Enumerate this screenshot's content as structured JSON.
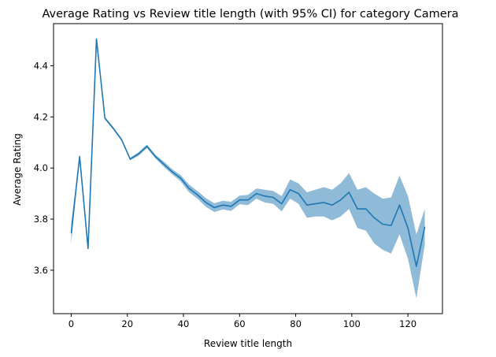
{
  "chart_data": {
    "type": "line",
    "title": "Average Rating vs Review title length (with 95% CI) for category Camera",
    "xlabel": "Review title length",
    "ylabel": "Average Rating",
    "xlim": [
      -6.3,
      132.3
    ],
    "ylim": [
      3.43,
      4.565
    ],
    "xticks": [
      0,
      20,
      40,
      60,
      80,
      100,
      120
    ],
    "yticks": [
      3.6,
      3.8,
      4.0,
      4.2,
      4.4
    ],
    "ytick_labels": [
      "3.6",
      "3.8",
      "4.0",
      "4.2",
      "4.4"
    ],
    "grid": false,
    "series": [
      {
        "color": "#1f77b4",
        "band_color": "#1f77b4",
        "band_opacity": 0.5,
        "x": [
          0,
          3,
          6,
          9,
          12,
          15,
          18,
          21,
          24,
          27,
          30,
          33,
          36,
          39,
          42,
          45,
          48,
          51,
          54,
          57,
          60,
          63,
          66,
          69,
          72,
          75,
          78,
          81,
          84,
          87,
          90,
          93,
          96,
          99,
          102,
          105,
          108,
          111,
          114,
          117,
          120,
          123,
          126
        ],
        "y": [
          3.745,
          4.045,
          3.685,
          4.505,
          4.195,
          4.155,
          4.11,
          4.035,
          4.055,
          4.085,
          4.045,
          4.015,
          3.985,
          3.96,
          3.92,
          3.895,
          3.865,
          3.845,
          3.855,
          3.85,
          3.875,
          3.875,
          3.9,
          3.89,
          3.885,
          3.86,
          3.915,
          3.9,
          3.855,
          3.86,
          3.865,
          3.855,
          3.875,
          3.905,
          3.84,
          3.84,
          3.805,
          3.78,
          3.775,
          3.855,
          3.765,
          3.615,
          3.77
        ],
        "ci_lower": [
          3.705,
          4.04,
          3.682,
          4.5,
          4.19,
          4.15,
          4.105,
          4.03,
          4.048,
          4.078,
          4.038,
          4.005,
          3.975,
          3.948,
          3.905,
          3.88,
          3.848,
          3.828,
          3.838,
          3.832,
          3.858,
          3.855,
          3.88,
          3.865,
          3.86,
          3.83,
          3.88,
          3.86,
          3.805,
          3.81,
          3.81,
          3.795,
          3.81,
          3.84,
          3.765,
          3.755,
          3.705,
          3.68,
          3.665,
          3.74,
          3.645,
          3.49,
          3.7
        ],
        "ci_upper": [
          3.785,
          4.05,
          3.688,
          4.51,
          4.2,
          4.16,
          4.115,
          4.04,
          4.062,
          4.092,
          4.052,
          4.025,
          3.995,
          3.972,
          3.935,
          3.91,
          3.882,
          3.862,
          3.872,
          3.868,
          3.892,
          3.895,
          3.92,
          3.915,
          3.91,
          3.89,
          3.955,
          3.94,
          3.905,
          3.915,
          3.925,
          3.915,
          3.94,
          3.98,
          3.915,
          3.925,
          3.9,
          3.88,
          3.885,
          3.97,
          3.89,
          3.74,
          3.84
        ]
      }
    ]
  }
}
